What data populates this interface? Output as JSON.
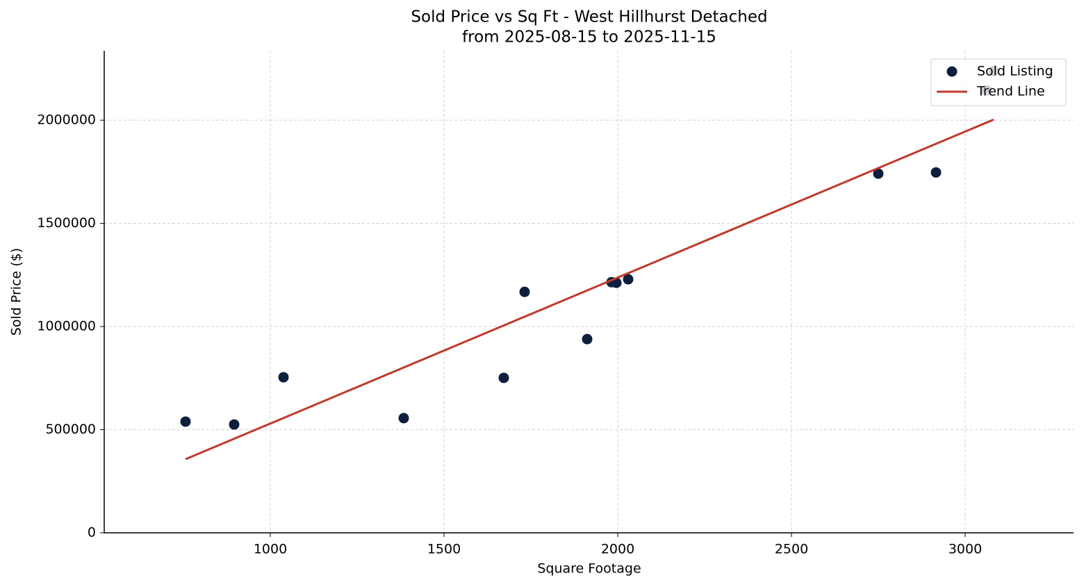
{
  "chart_data": {
    "type": "scatter",
    "title": "Sold Price vs Sq Ft - West Hillhurst Detached",
    "subtitle": "from 2025-08-15 to 2025-11-15",
    "x_label": "Square Footage",
    "y_label": "Sold Price ($)",
    "xlim": [
      522,
      3312
    ],
    "ylim": [
      0,
      2337000
    ],
    "xticks": [
      1000,
      1500,
      2000,
      2500,
      3000
    ],
    "yticks": [
      0,
      500000,
      1000000,
      1500000,
      2000000
    ],
    "grid": true,
    "legend": "upper right",
    "series": [
      {
        "name": "Sold Listing",
        "mode": "markers",
        "color": "#0d1f3c",
        "x": [
          756,
          896,
          1038,
          1384,
          1672,
          1732,
          1912,
          1982,
          1996,
          2030,
          2750,
          2916,
          3062,
          3082
        ],
        "values": [
          539000,
          525000,
          754000,
          556000,
          751000,
          1168000,
          939000,
          1215000,
          1212000,
          1229000,
          1741000,
          1747000,
          2145000,
          2239000
        ]
      },
      {
        "name": "Trend Line",
        "mode": "line",
        "color": "#c0392b",
        "x": [
          756,
          3082
        ],
        "values": [
          357000,
          2003000
        ]
      }
    ]
  }
}
